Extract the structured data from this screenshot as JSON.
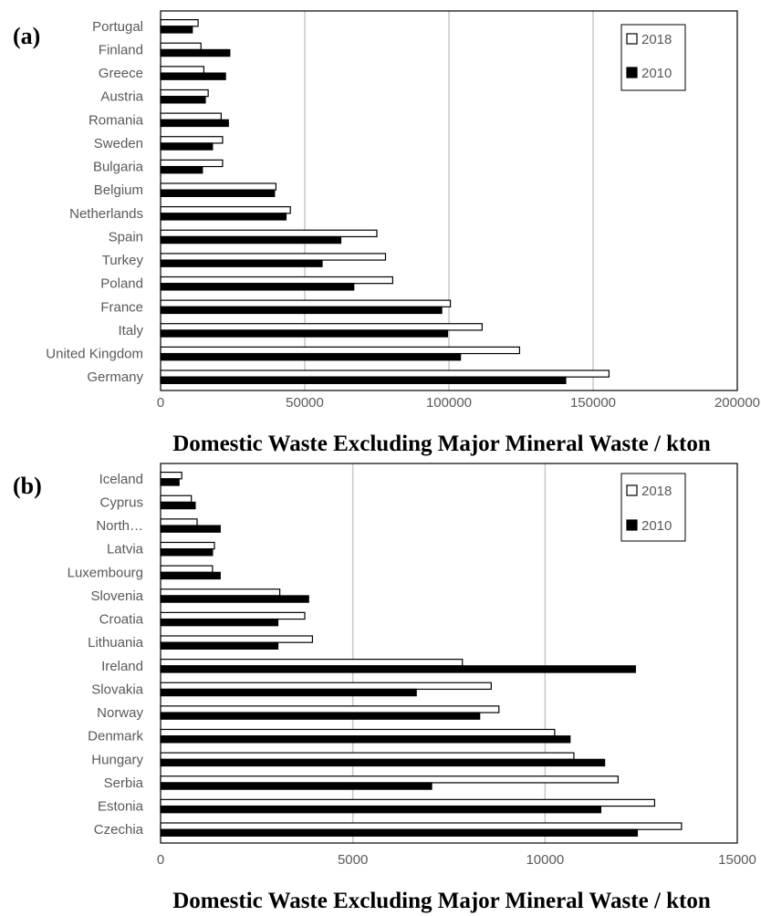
{
  "chart_data": [
    {
      "type": "bar",
      "orientation": "horizontal",
      "panel_label": "(a)",
      "categories": [
        "Portugal",
        "Finland",
        "Greece",
        "Austria",
        "Romania",
        "Sweden",
        "Bulgaria",
        "Belgium",
        "Netherlands",
        "Spain",
        "Turkey",
        "Poland",
        "France",
        "Italy",
        "United Kingdom",
        "Germany"
      ],
      "series": [
        {
          "name": "2018",
          "color": "#ffffff",
          "values": [
            13000,
            14000,
            15000,
            16500,
            21000,
            21500,
            21500,
            40000,
            45000,
            75000,
            78000,
            80500,
            100500,
            111500,
            124500,
            155500
          ]
        },
        {
          "name": "2010",
          "color": "#000000",
          "values": [
            11000,
            24000,
            22500,
            15500,
            23500,
            18000,
            14500,
            39500,
            43500,
            62500,
            56000,
            67000,
            97500,
            99500,
            104000,
            140500
          ]
        }
      ],
      "xlabel": "Domestic Waste Excluding Major Mineral Waste / kton",
      "xlim": [
        0,
        200000
      ],
      "xticks": [
        0,
        50000,
        100000,
        150000,
        200000
      ],
      "xtick_labels": [
        "0",
        "50000",
        "100000",
        "150000",
        "200000"
      ],
      "grid": "vertical",
      "legend": "top-right"
    },
    {
      "type": "bar",
      "orientation": "horizontal",
      "panel_label": "(b)",
      "categories": [
        "Iceland",
        "Cyprus",
        "North…",
        "Latvia",
        "Luxembourg",
        "Slovenia",
        "Croatia",
        "Lithuania",
        "Ireland",
        "Slovakia",
        "Norway",
        "Denmark",
        "Hungary",
        "Serbia",
        "Estonia",
        "Czechia"
      ],
      "series": [
        {
          "name": "2018",
          "color": "#ffffff",
          "values": [
            550,
            800,
            950,
            1400,
            1350,
            3100,
            3750,
            3950,
            7850,
            8600,
            8800,
            10250,
            10750,
            11900,
            12850,
            13550
          ]
        },
        {
          "name": "2010",
          "color": "#000000",
          "values": [
            480,
            900,
            1550,
            1350,
            1550,
            3850,
            3050,
            3050,
            12350,
            6650,
            8300,
            10650,
            11550,
            7050,
            11450,
            12400
          ]
        }
      ],
      "xlabel": "Domestic Waste Excluding Major Mineral Waste / kton",
      "xlim": [
        0,
        15000
      ],
      "xticks": [
        0,
        5000,
        10000,
        15000
      ],
      "xtick_labels": [
        "0",
        "5000",
        "10000",
        "15000"
      ],
      "grid": "vertical",
      "legend": "top-right"
    }
  ]
}
